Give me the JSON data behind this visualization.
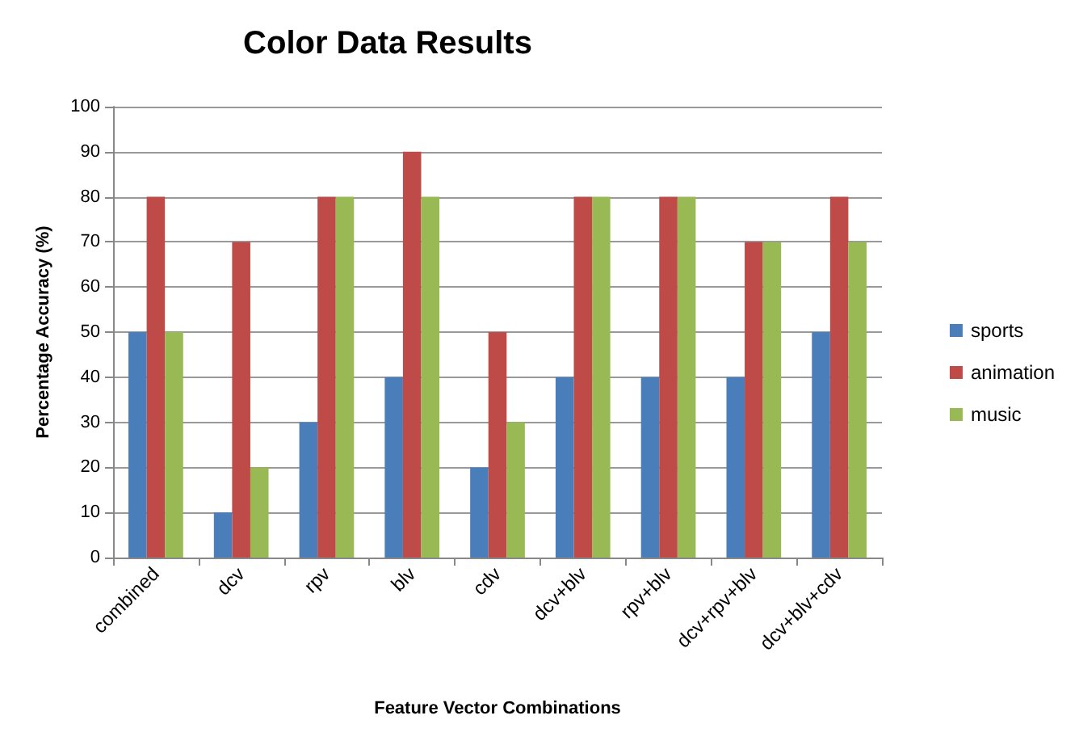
{
  "chart_data": {
    "type": "bar",
    "title": "Color Data Results",
    "xlabel": "Feature Vector Combinations",
    "ylabel": "Percentage Accuracy (%)",
    "categories": [
      "combined",
      "dcv",
      "rpv",
      "blv",
      "cdv",
      "dcv+blv",
      "rpv+blv",
      "dcv+rpv+blv",
      "dcv+blv+cdv"
    ],
    "series": [
      {
        "name": "sports",
        "color": "#4a7ebb",
        "values": [
          50,
          10,
          30,
          40,
          20,
          40,
          40,
          40,
          50
        ]
      },
      {
        "name": "animation",
        "color": "#be4b48",
        "values": [
          80,
          70,
          80,
          90,
          50,
          80,
          80,
          70,
          80
        ]
      },
      {
        "name": "music",
        "color": "#98b954",
        "values": [
          50,
          20,
          80,
          80,
          30,
          80,
          80,
          70,
          70
        ]
      }
    ],
    "ylim": [
      0,
      100
    ],
    "yticks": [
      0,
      10,
      20,
      30,
      40,
      50,
      60,
      70,
      80,
      90,
      100
    ],
    "grid": "y",
    "legend": "right"
  }
}
